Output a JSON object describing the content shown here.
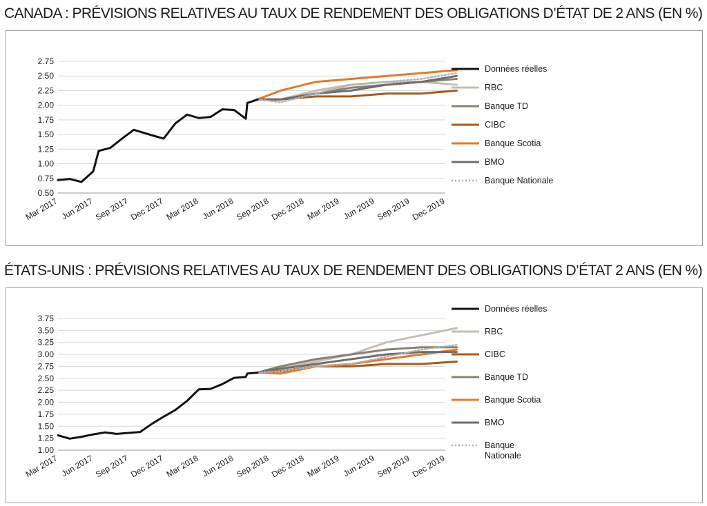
{
  "titles": {
    "canada": "CANADA : PRÉVISIONS RELATIVES AU TAUX DE RENDEMENT DES OBLIGATIONS D’ÉTAT DE 2 ANS (EN %)",
    "us": "ÉTATS-UNIS : PRÉVISIONS RELATIVES AU TAUX DE RENDEMENT DES OBLIGATIONS D’ÉTAT 2 ANS (EN %)"
  },
  "colors": {
    "Données réelles": "#111111",
    "RBC": "#c3bfb5",
    "Banque TD": "#8a8270",
    "CIBC": "#a85a1c",
    "Banque Scotia": "#e37a2a",
    "BMO": "#6f6d71",
    "Banque Nationale": "#b0b0b0"
  },
  "chart_data": [
    {
      "type": "line",
      "id": "canada",
      "title": "CANADA : PRÉVISIONS RELATIVES AU TAUX DE RENDEMENT DES OBLIGATIONS D’ÉTAT DE 2 ANS (EN %)",
      "x_ticks": [
        "Mar 2017",
        "Jun 2017",
        "Sep 2017",
        "Dec 2017",
        "Mar 2018",
        "Jun 2018",
        "Sep 2018",
        "Dec 2018",
        "Mar 2019",
        "Jun 2019",
        "Sep 2019",
        "Dec 2019"
      ],
      "x_range": [
        "2017-03",
        "2019-12"
      ],
      "y_ticks": [
        "0.50",
        "0.75",
        "1.00",
        "1.25",
        "1.50",
        "1.75",
        "2.00",
        "2.25",
        "2.50",
        "2.75"
      ],
      "ylim": [
        0.5,
        2.75
      ],
      "legend_position": "right",
      "legend": [
        "Données réelles",
        "RBC",
        "Banque TD",
        "CIBC",
        "Banque Scotia",
        "BMO",
        "Banque Nationale"
      ],
      "series": [
        {
          "name": "Données réelles",
          "style": "solid",
          "points": [
            [
              "2017-03-01",
              0.72
            ],
            [
              "2017-04-01",
              0.74
            ],
            [
              "2017-05-01",
              0.69
            ],
            [
              "2017-06-01",
              0.87
            ],
            [
              "2017-06-15",
              1.22
            ],
            [
              "2017-07-15",
              1.27
            ],
            [
              "2017-08-15",
              1.43
            ],
            [
              "2017-09-15",
              1.58
            ],
            [
              "2017-10-15",
              1.52
            ],
            [
              "2017-11-15",
              1.46
            ],
            [
              "2017-12-01",
              1.43
            ],
            [
              "2018-01-01",
              1.69
            ],
            [
              "2018-02-01",
              1.84
            ],
            [
              "2018-03-01",
              1.78
            ],
            [
              "2018-04-01",
              1.8
            ],
            [
              "2018-05-01",
              1.93
            ],
            [
              "2018-06-01",
              1.92
            ],
            [
              "2018-07-01",
              1.77
            ],
            [
              "2018-07-05",
              2.04
            ],
            [
              "2018-07-20",
              2.07
            ],
            [
              "2018-08-01",
              2.1
            ]
          ]
        },
        {
          "name": "RBC",
          "style": "solid",
          "points": [
            [
              "2018-08-01",
              2.1
            ],
            [
              "2018-09-30",
              2.1
            ],
            [
              "2018-12-31",
              2.25
            ],
            [
              "2019-03-31",
              2.35
            ],
            [
              "2019-06-30",
              2.4
            ],
            [
              "2019-09-30",
              2.4
            ],
            [
              "2019-12-31",
              2.35
            ]
          ]
        },
        {
          "name": "Banque TD",
          "style": "solid",
          "points": [
            [
              "2018-08-01",
              2.1
            ],
            [
              "2018-09-30",
              2.1
            ],
            [
              "2018-12-31",
              2.2
            ],
            [
              "2019-03-31",
              2.3
            ],
            [
              "2019-06-30",
              2.35
            ],
            [
              "2019-09-30",
              2.4
            ],
            [
              "2019-12-31",
              2.45
            ]
          ]
        },
        {
          "name": "CIBC",
          "style": "solid",
          "points": [
            [
              "2018-08-01",
              2.1
            ],
            [
              "2018-09-30",
              2.1
            ],
            [
              "2018-12-31",
              2.15
            ],
            [
              "2019-03-31",
              2.15
            ],
            [
              "2019-06-30",
              2.2
            ],
            [
              "2019-09-30",
              2.2
            ],
            [
              "2019-12-31",
              2.25
            ]
          ]
        },
        {
          "name": "Banque Scotia",
          "style": "solid",
          "points": [
            [
              "2018-08-01",
              2.1
            ],
            [
              "2018-09-30",
              2.25
            ],
            [
              "2018-12-31",
              2.4
            ],
            [
              "2019-03-31",
              2.45
            ],
            [
              "2019-06-30",
              2.5
            ],
            [
              "2019-09-30",
              2.55
            ],
            [
              "2019-12-31",
              2.6
            ]
          ]
        },
        {
          "name": "BMO",
          "style": "solid",
          "points": [
            [
              "2018-08-01",
              2.1
            ],
            [
              "2018-09-30",
              2.1
            ],
            [
              "2018-12-31",
              2.2
            ],
            [
              "2019-03-31",
              2.25
            ],
            [
              "2019-06-30",
              2.35
            ],
            [
              "2019-09-30",
              2.4
            ],
            [
              "2019-12-31",
              2.5
            ]
          ]
        },
        {
          "name": "Banque Nationale",
          "style": "dotted",
          "points": [
            [
              "2018-08-01",
              2.1
            ],
            [
              "2018-09-30",
              2.05
            ],
            [
              "2018-12-31",
              2.2
            ],
            [
              "2019-03-31",
              2.35
            ],
            [
              "2019-06-30",
              2.4
            ],
            [
              "2019-09-30",
              2.45
            ],
            [
              "2019-12-31",
              2.55
            ]
          ]
        }
      ]
    },
    {
      "type": "line",
      "id": "us",
      "title": "ÉTATS-UNIS : PRÉVISIONS RELATIVES AU TAUX DE RENDEMENT DES OBLIGATIONS D’ÉTAT 2 ANS (EN %)",
      "x_ticks": [
        "Mar 2017",
        "Jun 2017",
        "Sep 2017",
        "Dec 2017",
        "Mar 2018",
        "Jun 2018",
        "Sep 2018",
        "Dec 2018",
        "Mar 2019",
        "Jun 2019",
        "Sep 2019",
        "Dec 2019"
      ],
      "x_range": [
        "2017-03",
        "2019-12"
      ],
      "y_ticks": [
        "1.00",
        "1.25",
        "1.50",
        "1.75",
        "2.00",
        "2.25",
        "2.50",
        "2.75",
        "3.00",
        "3.25",
        "3.50",
        "3.75"
      ],
      "ylim": [
        1.0,
        3.75
      ],
      "legend_position": "right",
      "legend": [
        "Données réelles",
        "RBC",
        "CIBC",
        "Banque TD",
        "Banque Scotia",
        "BMO",
        "Banque Nationale"
      ],
      "legend_labels": [
        "Données réelles",
        "RBC",
        "CIBC",
        "Banque TD",
        "Banque Scotia",
        "BMO",
        [
          "Banque",
          "Nationale"
        ]
      ],
      "series": [
        {
          "name": "Données réelles",
          "style": "solid",
          "points": [
            [
              "2017-03-01",
              1.31
            ],
            [
              "2017-04-01",
              1.24
            ],
            [
              "2017-05-01",
              1.28
            ],
            [
              "2017-06-01",
              1.33
            ],
            [
              "2017-07-01",
              1.37
            ],
            [
              "2017-08-01",
              1.34
            ],
            [
              "2017-09-01",
              1.36
            ],
            [
              "2017-10-01",
              1.38
            ],
            [
              "2017-11-01",
              1.55
            ],
            [
              "2017-12-01",
              1.7
            ],
            [
              "2018-01-01",
              1.84
            ],
            [
              "2018-02-01",
              2.03
            ],
            [
              "2018-03-01",
              2.27
            ],
            [
              "2018-04-01",
              2.28
            ],
            [
              "2018-05-01",
              2.38
            ],
            [
              "2018-06-01",
              2.51
            ],
            [
              "2018-07-01",
              2.53
            ],
            [
              "2018-07-05",
              2.6
            ],
            [
              "2018-08-01",
              2.62
            ]
          ]
        },
        {
          "name": "RBC",
          "style": "solid",
          "points": [
            [
              "2018-08-01",
              2.62
            ],
            [
              "2018-09-30",
              2.7
            ],
            [
              "2018-12-31",
              2.85
            ],
            [
              "2019-03-31",
              3.0
            ],
            [
              "2019-06-30",
              3.25
            ],
            [
              "2019-09-30",
              3.4
            ],
            [
              "2019-12-31",
              3.55
            ]
          ]
        },
        {
          "name": "CIBC",
          "style": "solid",
          "points": [
            [
              "2018-08-01",
              2.62
            ],
            [
              "2018-09-30",
              2.65
            ],
            [
              "2018-12-31",
              2.75
            ],
            [
              "2019-03-31",
              2.75
            ],
            [
              "2019-06-30",
              2.8
            ],
            [
              "2019-09-30",
              2.8
            ],
            [
              "2019-12-31",
              2.85
            ]
          ]
        },
        {
          "name": "Banque TD",
          "style": "solid",
          "points": [
            [
              "2018-08-01",
              2.62
            ],
            [
              "2018-09-30",
              2.75
            ],
            [
              "2018-12-31",
              2.9
            ],
            [
              "2019-03-31",
              3.0
            ],
            [
              "2019-06-30",
              3.1
            ],
            [
              "2019-09-30",
              3.15
            ],
            [
              "2019-12-31",
              3.15
            ]
          ]
        },
        {
          "name": "Banque Scotia",
          "style": "solid",
          "points": [
            [
              "2018-08-01",
              2.62
            ],
            [
              "2018-09-30",
              2.6
            ],
            [
              "2018-12-31",
              2.75
            ],
            [
              "2019-03-31",
              2.8
            ],
            [
              "2019-06-30",
              2.9
            ],
            [
              "2019-09-30",
              3.0
            ],
            [
              "2019-12-31",
              3.1
            ]
          ]
        },
        {
          "name": "BMO",
          "style": "solid",
          "points": [
            [
              "2018-08-01",
              2.62
            ],
            [
              "2018-09-30",
              2.7
            ],
            [
              "2018-12-31",
              2.8
            ],
            [
              "2019-03-31",
              2.9
            ],
            [
              "2019-06-30",
              3.0
            ],
            [
              "2019-09-30",
              3.05
            ],
            [
              "2019-12-31",
              3.05
            ]
          ]
        },
        {
          "name": "Banque Nationale",
          "style": "dotted",
          "points": [
            [
              "2018-08-01",
              2.62
            ],
            [
              "2018-09-30",
              2.65
            ],
            [
              "2018-12-31",
              2.75
            ],
            [
              "2019-03-31",
              2.8
            ],
            [
              "2019-06-30",
              2.95
            ],
            [
              "2019-09-30",
              3.1
            ],
            [
              "2019-12-31",
              3.2
            ]
          ]
        }
      ]
    }
  ]
}
